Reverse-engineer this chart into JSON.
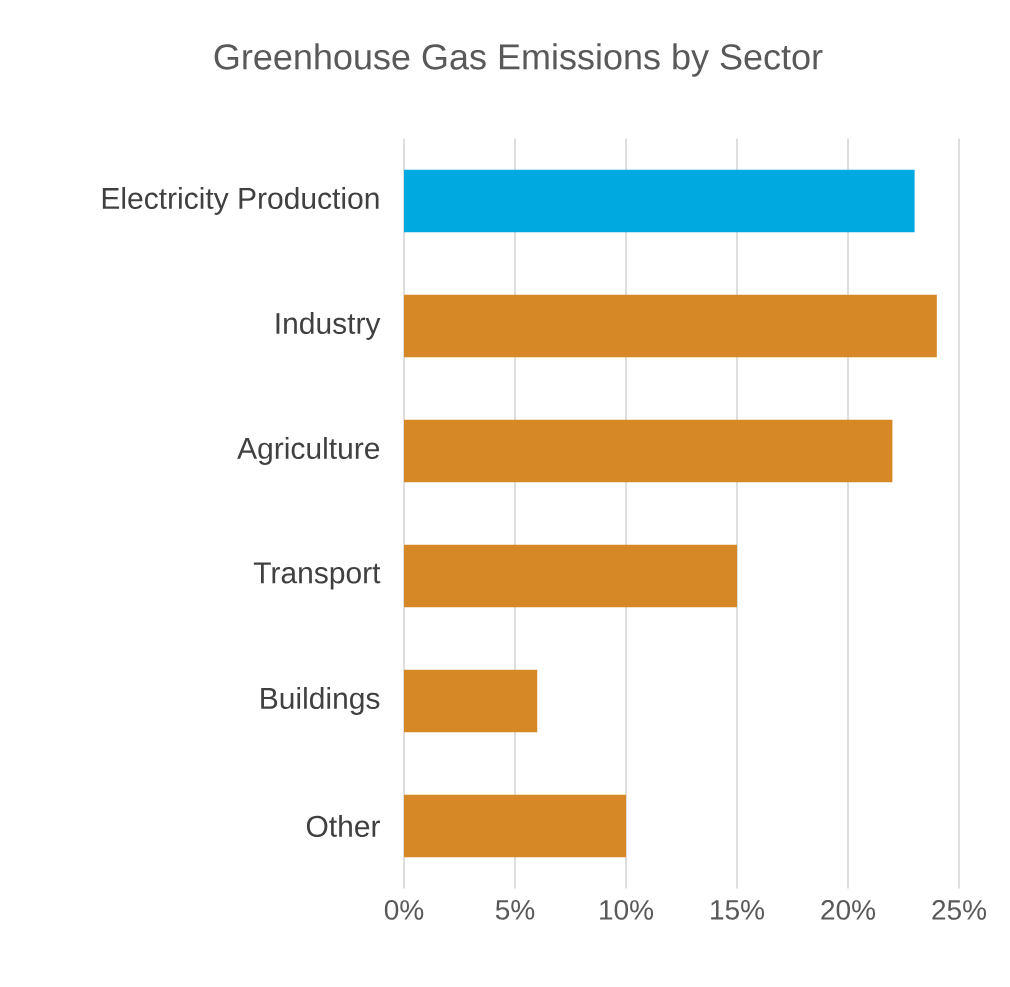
{
  "chart_data": {
    "type": "bar",
    "orientation": "horizontal",
    "title": "Greenhouse Gas Emissions by Sector",
    "categories": [
      "Electricity Production",
      "Industry",
      "Agriculture",
      "Transport",
      "Buildings",
      "Other"
    ],
    "values": [
      23,
      24,
      22,
      15,
      6,
      10
    ],
    "colors": [
      "#00a9e0",
      "#d68826",
      "#d68826",
      "#d68826",
      "#d68826",
      "#d68826"
    ],
    "xlim": [
      0,
      25
    ],
    "xticks": [
      {
        "value": 0,
        "label": "0%"
      },
      {
        "value": 5,
        "label": "5%"
      },
      {
        "value": 10,
        "label": "10%"
      },
      {
        "value": 15,
        "label": "15%"
      },
      {
        "value": 20,
        "label": "20%"
      },
      {
        "value": 25,
        "label": "25%"
      }
    ],
    "grid": "x"
  }
}
